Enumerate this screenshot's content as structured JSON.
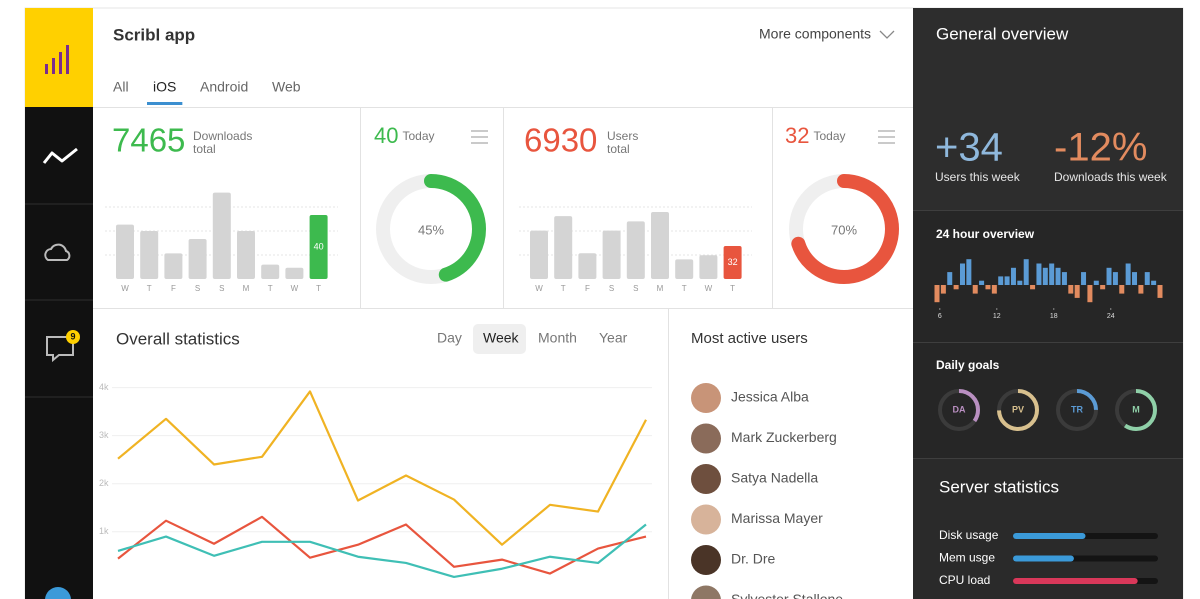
{
  "sidebar": {
    "notifications": 9
  },
  "header": {
    "title": "Scribl app",
    "menu": "More components",
    "tabs": [
      "All",
      "iOS",
      "Android",
      "Web"
    ],
    "active_tab": 1
  },
  "downloads": {
    "total": 7465,
    "caption": [
      "Downloads",
      "total"
    ],
    "today_caption": "Today",
    "color": "#3dba4e",
    "categories": [
      "W",
      "T",
      "F",
      "S",
      "S",
      "M",
      "T",
      "W",
      "T"
    ],
    "values": [
      34,
      30,
      16,
      25,
      54,
      30,
      9,
      7,
      40
    ],
    "highlight": 8,
    "donut": {
      "value": 45,
      "label": "45%"
    }
  },
  "users": {
    "total": 6930,
    "caption": [
      "Users",
      "total"
    ],
    "today_caption": "Today",
    "color": "#e8553e",
    "categories": [
      "W",
      "T",
      "F",
      "S",
      "S",
      "M",
      "T",
      "W",
      "T"
    ],
    "values": [
      47,
      61,
      25,
      47,
      56,
      65,
      19,
      23,
      32
    ],
    "highlight": 8,
    "donut": {
      "value": 70,
      "label": "70%"
    }
  },
  "statistics": {
    "type": "line",
    "title": "Overall statistics",
    "periods": [
      "Day",
      "Week",
      "Month",
      "Year"
    ],
    "active_period": 1,
    "categories": [
      null,
      null,
      null,
      null,
      null,
      null,
      null,
      null,
      null,
      null,
      null,
      null
    ],
    "series": [
      {
        "color": "#f0b323",
        "values": [
          2520,
          3350,
          2400,
          2560,
          3920,
          1650,
          2170,
          1670,
          730,
          1560,
          1420,
          3330
        ]
      },
      {
        "color": "#e8553e",
        "values": [
          440,
          1230,
          750,
          1310,
          460,
          730,
          1150,
          270,
          420,
          130,
          650,
          900
        ]
      },
      {
        "color": "#3fbfb5",
        "values": [
          600,
          900,
          500,
          790,
          790,
          480,
          350,
          60,
          230,
          480,
          350,
          1150
        ]
      }
    ],
    "ylim": [
      -400,
      4200
    ],
    "yticks": [
      {
        "value": 1000,
        "label": "1k"
      },
      {
        "value": 2000,
        "label": "2k"
      },
      {
        "value": 3000,
        "label": "3k"
      },
      {
        "value": 4000,
        "label": "4k"
      }
    ],
    "grid": true
  },
  "active_users": {
    "title": "Most active users",
    "names": [
      "Jessica Alba",
      "Mark Zuckerberg",
      "Satya Nadella",
      "Marissa Mayer",
      "Dr. Dre",
      "Sylvester Stallone"
    ]
  },
  "overview": {
    "title": "General overview",
    "stats": [
      {
        "value": 34,
        "label": "+34",
        "caption": "Users this week",
        "color": "#8fb8dc"
      },
      {
        "value": -12,
        "label": "-12%",
        "caption": "Downloads this week",
        "color": "#e28b5f"
      }
    ]
  },
  "hourly": {
    "title": "24 hour overview",
    "values": [
      -4,
      -2,
      3,
      -1,
      5,
      6,
      -2,
      1,
      -1,
      -2,
      2,
      2,
      4,
      1,
      6,
      -1,
      5,
      4,
      5,
      4,
      3,
      -2,
      -3,
      3,
      -4,
      1,
      -1,
      4,
      3,
      -2,
      5,
      3,
      -2,
      3,
      1,
      -3
    ],
    "xlim": [
      5.6,
      29.5
    ],
    "xticks": [
      6,
      12,
      18,
      24
    ]
  },
  "goals": {
    "title": "Daily goals",
    "items": [
      {
        "label": "DA",
        "value": 35,
        "color": "#b98fc1"
      },
      {
        "label": "PV",
        "value": 75,
        "color": "#d8c08e"
      },
      {
        "label": "TR",
        "value": 25,
        "color": "#5b9bd5"
      },
      {
        "label": "M",
        "value": 60,
        "color": "#8fd0a8"
      }
    ]
  },
  "server": {
    "title": "Server statistics",
    "items": [
      {
        "label": "Disk usage",
        "value": 50,
        "color": "#3b9ad9"
      },
      {
        "label": "Mem usge",
        "value": 42,
        "color": "#3b9ad9"
      },
      {
        "label": "CPU load",
        "value": 86,
        "color": "#d9385a"
      }
    ]
  }
}
